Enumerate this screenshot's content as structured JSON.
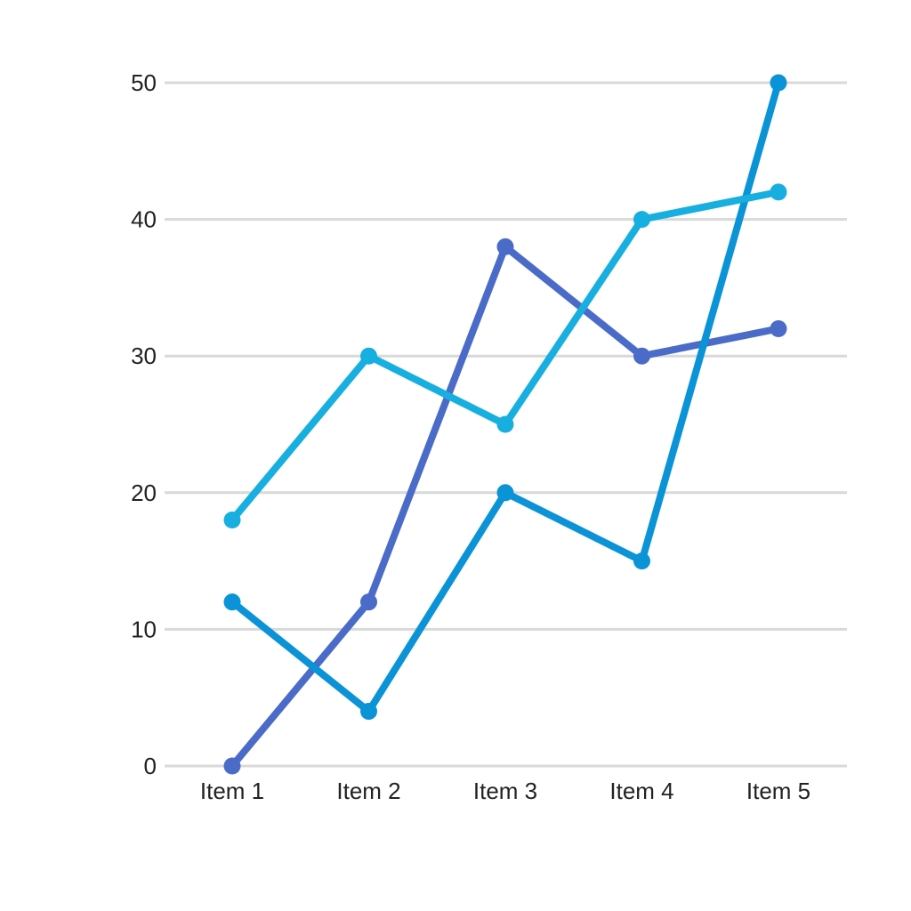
{
  "chart_data": {
    "type": "line",
    "title": "",
    "xlabel": "",
    "ylabel": "",
    "categories": [
      "Item 1",
      "Item 2",
      "Item 3",
      "Item 4",
      "Item 5"
    ],
    "ylim": [
      0,
      50
    ],
    "yticks": [
      0,
      10,
      20,
      30,
      40,
      50
    ],
    "grid": true,
    "legend": "none",
    "series": [
      {
        "color": "#4A6BC7",
        "values": [
          0,
          12,
          38,
          30,
          32
        ]
      },
      {
        "color": "#0A93D6",
        "values": [
          12,
          4,
          20,
          15,
          50
        ]
      },
      {
        "color": "#17AEE0",
        "values": [
          18,
          30,
          25,
          40,
          42
        ]
      }
    ]
  }
}
